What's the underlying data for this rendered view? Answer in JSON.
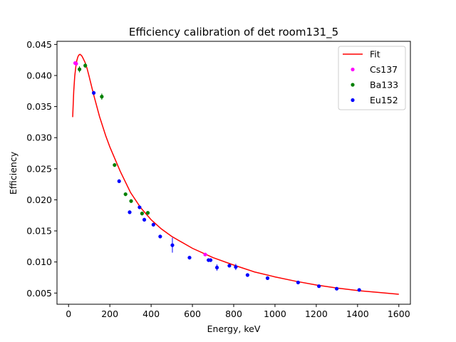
{
  "chart_data": {
    "type": "scatter",
    "title": "Efficiency calibration of det room131_5",
    "xlabel": "Energy, keV",
    "ylabel": "Efficiency",
    "xlim": [
      -56,
      1656
    ],
    "ylim": [
      0.0032,
      0.0455
    ],
    "xticks": [
      "0",
      "200",
      "400",
      "600",
      "800",
      "1000",
      "1200",
      "1400",
      "1600"
    ],
    "yticks": [
      "0.005",
      "0.010",
      "0.015",
      "0.020",
      "0.025",
      "0.030",
      "0.035",
      "0.040",
      "0.045"
    ],
    "grid": false,
    "legend_position": "top-right",
    "fit": {
      "name": "Fit",
      "color": "#ff0000",
      "x": [
        20,
        25,
        30,
        35,
        40,
        45,
        50,
        55,
        60,
        65,
        70,
        80,
        90,
        100,
        120,
        150,
        180,
        200,
        250,
        300,
        350,
        400,
        450,
        500,
        600,
        700,
        800,
        900,
        1000,
        1100,
        1200,
        1300,
        1400,
        1500,
        1600
      ],
      "y": [
        0.0333,
        0.0375,
        0.0399,
        0.0414,
        0.0424,
        0.043,
        0.0433,
        0.0434,
        0.0433,
        0.0431,
        0.0428,
        0.0421,
        0.0411,
        0.0398,
        0.0371,
        0.0334,
        0.0303,
        0.0285,
        0.0246,
        0.0212,
        0.0187,
        0.0168,
        0.0153,
        0.0141,
        0.0122,
        0.0107,
        0.0095,
        0.0084,
        0.0076,
        0.0069,
        0.0063,
        0.0058,
        0.0054,
        0.0051,
        0.0048
      ]
    },
    "series": [
      {
        "name": "Cs137",
        "color": "#ff00ff",
        "points": [
          {
            "x": 32,
            "y": 0.042,
            "err": 0.0003
          },
          {
            "x": 37,
            "y": 0.0419,
            "err": 0.0003
          },
          {
            "x": 662,
            "y": 0.0112,
            "err": 0.0002
          }
        ]
      },
      {
        "name": "Ba133",
        "color": "#008000",
        "points": [
          {
            "x": 53,
            "y": 0.041,
            "err": 0.0005
          },
          {
            "x": 81,
            "y": 0.0416,
            "err": 0.0004
          },
          {
            "x": 161,
            "y": 0.0366,
            "err": 0.0005
          },
          {
            "x": 223,
            "y": 0.0256,
            "err": 0.0003
          },
          {
            "x": 276,
            "y": 0.0209,
            "err": 0.0003
          },
          {
            "x": 303,
            "y": 0.0198,
            "err": 0.0003
          },
          {
            "x": 356,
            "y": 0.0178,
            "err": 0.0003
          },
          {
            "x": 384,
            "y": 0.0179,
            "err": 0.0003
          }
        ]
      },
      {
        "name": "Eu152",
        "color": "#0000ff",
        "points": [
          {
            "x": 122,
            "y": 0.0372,
            "err": 0.0003
          },
          {
            "x": 245,
            "y": 0.023,
            "err": 0.0003
          },
          {
            "x": 296,
            "y": 0.018,
            "err": 0.0003
          },
          {
            "x": 344,
            "y": 0.0188,
            "err": 0.0002
          },
          {
            "x": 367,
            "y": 0.0168,
            "err": 0.0003
          },
          {
            "x": 411,
            "y": 0.016,
            "err": 0.0003
          },
          {
            "x": 444,
            "y": 0.0141,
            "err": 0.0003
          },
          {
            "x": 503,
            "y": 0.0127,
            "err": 0.0012
          },
          {
            "x": 586,
            "y": 0.0107,
            "err": 0.0003
          },
          {
            "x": 678,
            "y": 0.0103,
            "err": 0.0003
          },
          {
            "x": 688,
            "y": 0.0103,
            "err": 0.0003
          },
          {
            "x": 719,
            "y": 0.0091,
            "err": 0.0005
          },
          {
            "x": 779,
            "y": 0.0094,
            "err": 0.0002
          },
          {
            "x": 810,
            "y": 0.0092,
            "err": 0.0005
          },
          {
            "x": 867,
            "y": 0.0079,
            "err": 0.0002
          },
          {
            "x": 964,
            "y": 0.0074,
            "err": 0.0002
          },
          {
            "x": 1112,
            "y": 0.0067,
            "err": 0.0002
          },
          {
            "x": 1213,
            "y": 0.0061,
            "err": 0.0002
          },
          {
            "x": 1299,
            "y": 0.0057,
            "err": 0.0002
          },
          {
            "x": 1408,
            "y": 0.0055,
            "err": 0.0002
          }
        ]
      }
    ]
  }
}
